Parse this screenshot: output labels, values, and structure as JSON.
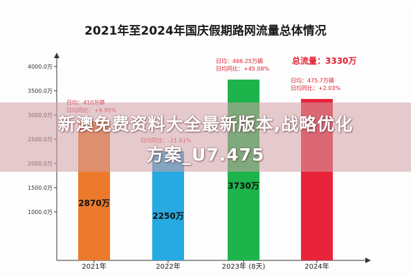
{
  "chart_data": {
    "type": "bar",
    "title": "2021年至2024年国庆假期路网流量总体情况",
    "categories": [
      "2021年",
      "2022年",
      "2023年 (8天)",
      "2024年"
    ],
    "values": [
      2870,
      2250,
      3730,
      3330
    ],
    "value_labels": [
      "2870万",
      "2250万",
      "3730万",
      ""
    ],
    "unit": "万",
    "ylim": [
      0,
      4000
    ],
    "yticks": [
      1000,
      1500,
      2000,
      2500,
      3000,
      3500,
      4000
    ],
    "ytick_labels": [
      "1000.0万",
      "1500.0万",
      "2000.0万",
      "2500.0万",
      "3000.0万",
      "3500.0万",
      "4000.0万"
    ],
    "colors": [
      "#ec7a2c",
      "#27a9e1",
      "#1db44c",
      "#e8233a"
    ],
    "annotations": [
      {
        "bar": 0,
        "lines": [
          "日均：410万辆",
          "日均同比：+9.95%"
        ]
      },
      {
        "bar": 1,
        "lines": [
          "",
          "日均同比：-21.61%"
        ]
      },
      {
        "bar": 2,
        "lines": [
          "日均：466.25万辆",
          "日均同比：+45.08%"
        ]
      },
      {
        "bar": 3,
        "lines": [
          "日均：475.7万辆",
          "日均同比：+2.03%"
        ]
      }
    ],
    "total_label": "总流量：3330万",
    "grid": false
  },
  "overlay": {
    "line1": "新澳免费资料大全最新版本,战略优化",
    "line2": "方案_U7.475"
  },
  "colors": {
    "axis": "#333333",
    "annotation_text": "#e02030",
    "title_text": "#1a1a1a"
  }
}
